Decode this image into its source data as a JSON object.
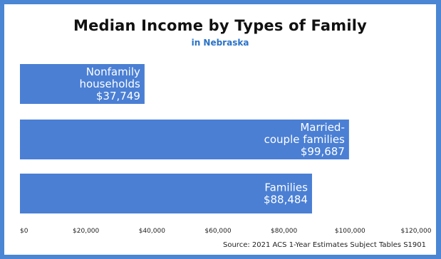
{
  "chart_data": {
    "type": "bar",
    "orientation": "horizontal",
    "title": "Median Income by Types of Family",
    "subtitle": "in Nebraska",
    "categories": [
      "Nonfamily households",
      "Married-couple families",
      "Families"
    ],
    "values": [
      37749,
      99687,
      88484
    ],
    "data_labels": [
      [
        "Nonfamily",
        "households",
        "$37,749"
      ],
      [
        "Married-",
        "couple families",
        "$99,687"
      ],
      [
        "Families",
        "$88,484"
      ]
    ],
    "xlim": [
      0,
      120000
    ],
    "xticks": [
      0,
      20000,
      40000,
      60000,
      80000,
      100000,
      120000
    ],
    "xtick_labels": [
      "$0",
      "$20,000",
      "$40,000",
      "$60,000",
      "$80,000",
      "$100,000",
      "$120,000"
    ],
    "grid": false,
    "legend": "none",
    "bar_color": "#4a7fd4",
    "source": "Source: 2021 ACS 1-Year Estimates Subject Tables S1901"
  },
  "colors": {
    "frame": "#4a86d4",
    "subtitle": "#2a72c8"
  }
}
